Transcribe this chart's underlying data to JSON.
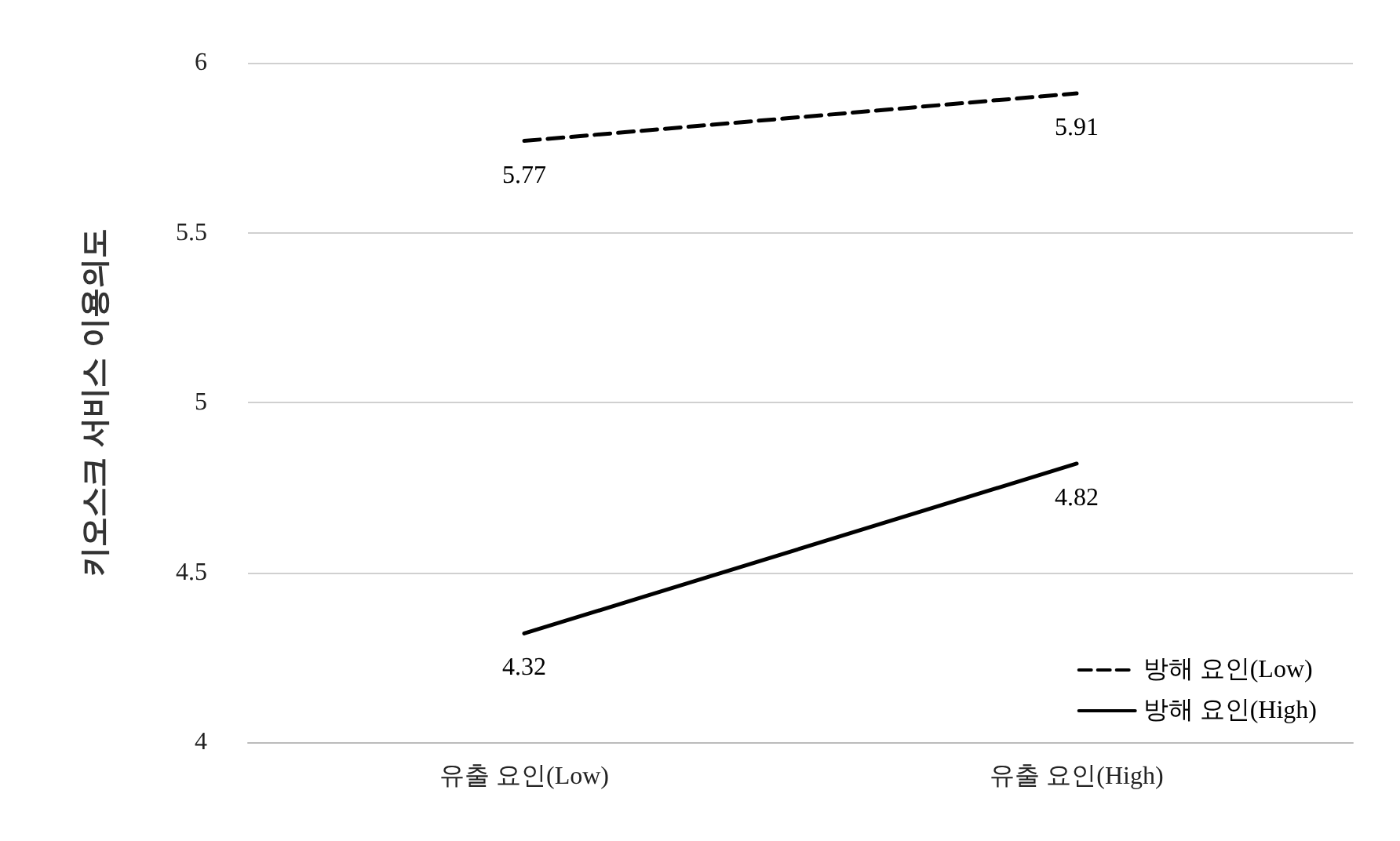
{
  "chart_data": {
    "type": "line",
    "ylabel": "키오스크 서비스 이용의도",
    "categories": [
      "유출 요인(Low)",
      "유출 요인(High)"
    ],
    "series": [
      {
        "name": "방해 요인(Low)",
        "color": "#000000",
        "line_style": "dashed",
        "values": [
          5.77,
          5.91
        ]
      },
      {
        "name": "방해 요인(High)",
        "color": "#000000",
        "line_style": "solid",
        "values": [
          4.32,
          4.82
        ]
      }
    ],
    "ylim": [
      4,
      6
    ],
    "yticks": [
      4,
      4.5,
      5,
      5.5,
      6
    ],
    "grid": "y",
    "legend": "bottom right",
    "marker": "none",
    "data_labels": true
  }
}
